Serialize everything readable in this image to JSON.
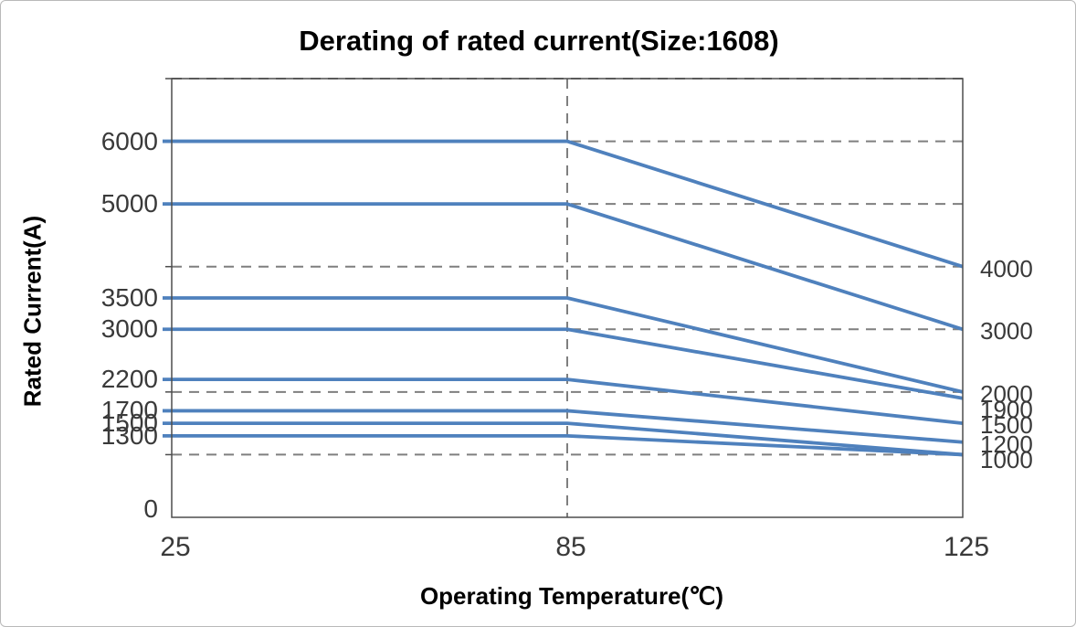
{
  "chart_data": {
    "type": "line",
    "title": "Derating of rated current(Size:1608)",
    "xlabel": "Operating Temperature(℃)",
    "ylabel": "Rated Current(A)",
    "x_categories": [
      25,
      85,
      125
    ],
    "x_tick_labels": [
      "25",
      "85",
      "125"
    ],
    "ylim": [
      0,
      7000
    ],
    "grid": "horizontal-dashed",
    "gridlines_y": [
      1000,
      2000,
      3000,
      4000,
      5000,
      6000,
      7000
    ],
    "vertical_reference_line_x": 85,
    "legend": "none",
    "series": [
      {
        "name": "6000A line",
        "values": [
          6000,
          6000,
          4000
        ]
      },
      {
        "name": "5000A line",
        "values": [
          5000,
          5000,
          3000
        ]
      },
      {
        "name": "3500A line",
        "values": [
          3500,
          3500,
          2000
        ]
      },
      {
        "name": "3000A line",
        "values": [
          3000,
          3000,
          1900
        ]
      },
      {
        "name": "2200A line",
        "values": [
          2200,
          2200,
          1500
        ]
      },
      {
        "name": "1700A line",
        "values": [
          1700,
          1700,
          1200
        ]
      },
      {
        "name": "1500A line",
        "values": [
          1500,
          1500,
          1000
        ]
      },
      {
        "name": "1300A line",
        "values": [
          1300,
          1300,
          1000
        ]
      }
    ],
    "left_axis_labels": [
      {
        "text": "6000",
        "value": 6000
      },
      {
        "text": "5000",
        "value": 5000
      },
      {
        "text": "3500",
        "value": 3500
      },
      {
        "text": "3000",
        "value": 3000
      },
      {
        "text": "2200",
        "value": 2200
      },
      {
        "text": "1700",
        "value": 1700
      },
      {
        "text": "1500",
        "value": 1500
      },
      {
        "text": "1300",
        "value": 1300
      },
      {
        "text": "0",
        "value": 0
      }
    ],
    "right_axis_labels": [
      {
        "text": "4000",
        "value": 4000
      },
      {
        "text": "3000",
        "value": 3000
      },
      {
        "text": "2000",
        "value": 2000
      },
      {
        "text": "1900",
        "value": 1900
      },
      {
        "text": "1500",
        "value": 1500
      },
      {
        "text": "1200",
        "value": 1200
      },
      {
        "text": "1000",
        "value": 1000
      }
    ],
    "colors": {
      "line": "#4F81BD",
      "gridline": "#7F7F7F",
      "axis_border": "#4d4d4d",
      "text": "#3a3a3a",
      "background": "#FFFFFF"
    }
  }
}
